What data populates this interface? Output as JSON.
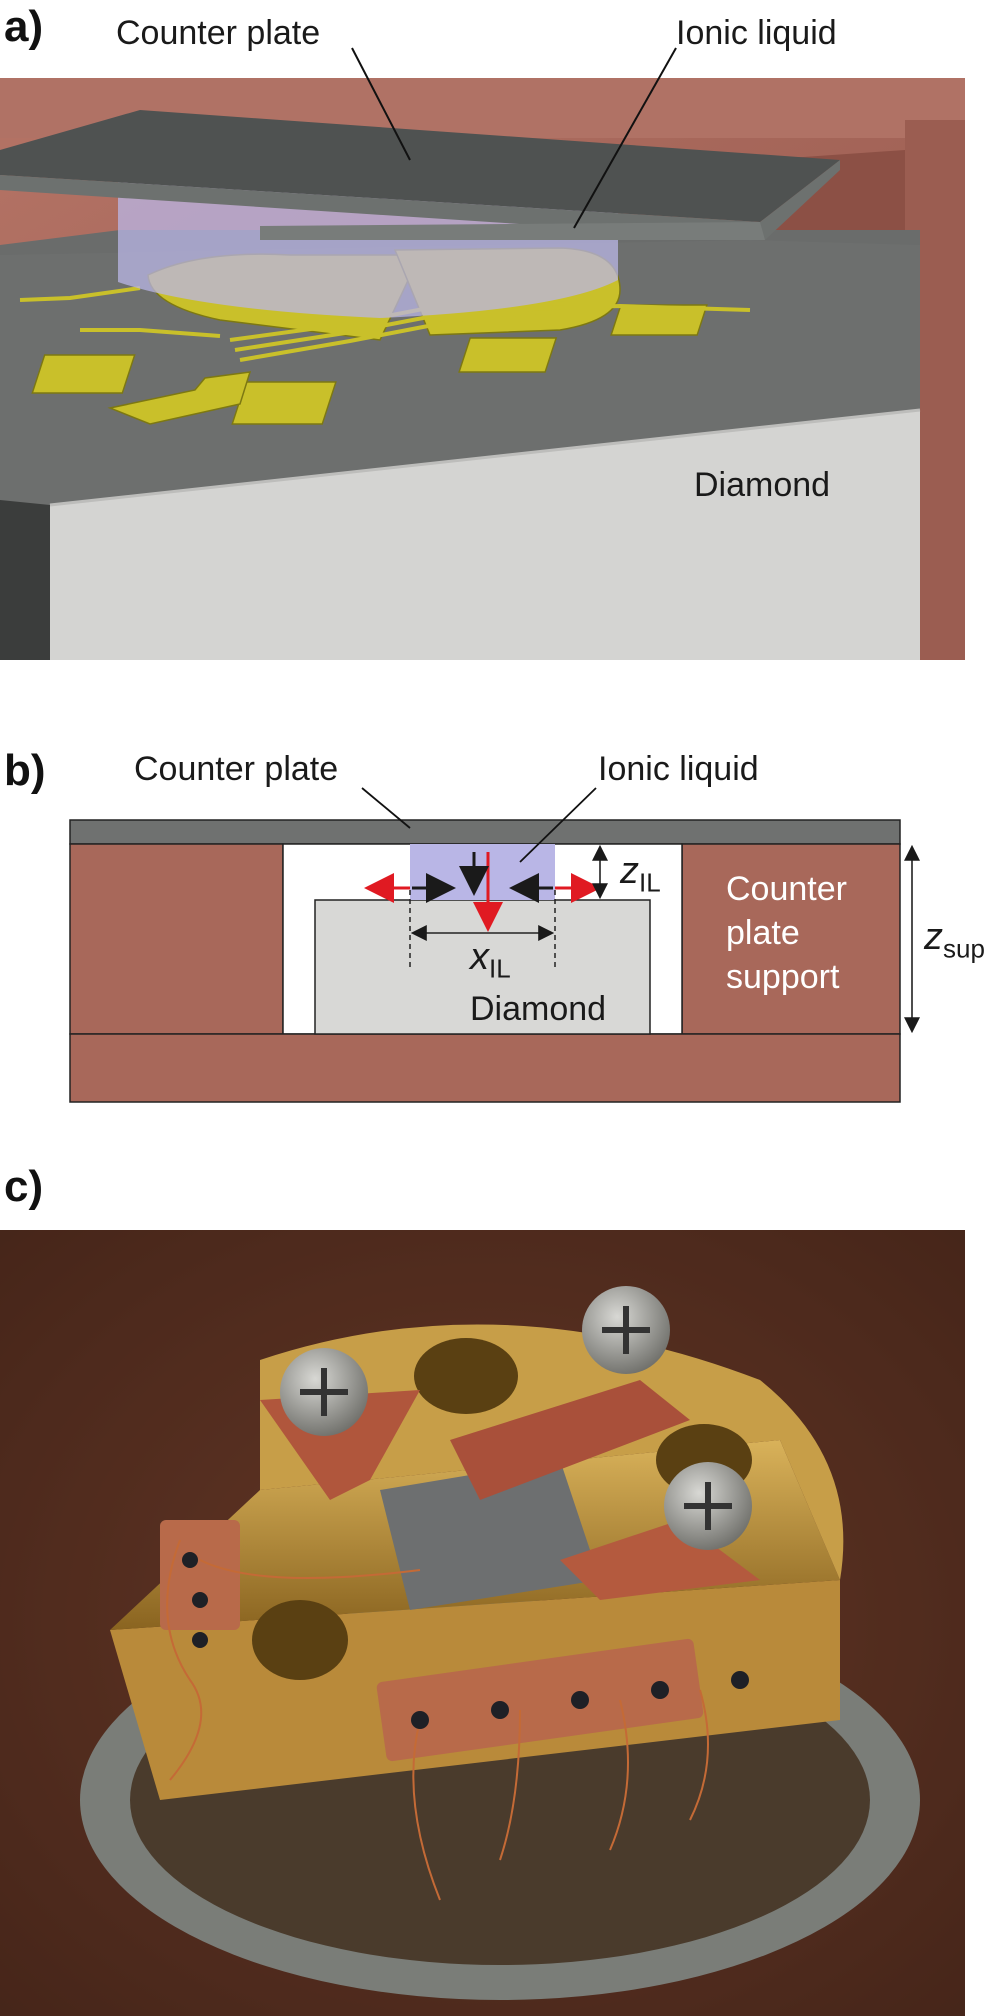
{
  "panels": {
    "a": {
      "label": "a)",
      "annotations": {
        "counter_plate": "Counter plate",
        "ionic_liquid": "Ionic liquid",
        "diamond": "Diamond"
      }
    },
    "b": {
      "label": "b)",
      "annotations": {
        "counter_plate": "Counter plate",
        "ionic_liquid": "Ionic liquid",
        "support_line1": "Counter",
        "support_line2": "plate",
        "support_line3": "support",
        "diamond": "Diamond",
        "x_var": "x",
        "x_sub": "IL",
        "z_var": "z",
        "z_sub": "IL",
        "zsup_var": "z",
        "zsup_sub": "sup"
      }
    },
    "c": {
      "label": "c)"
    }
  },
  "colors": {
    "copper": "#a8685a",
    "copper_dark": "#7a4336",
    "counter_plate": "#5a5d5c",
    "diamond": "#d8d8d6",
    "ionic_liquid": "#b9b6e6",
    "electrode_gold": "#c9c02a",
    "arrow_red": "#e01a22",
    "arrow_black": "#1a1a1a"
  }
}
